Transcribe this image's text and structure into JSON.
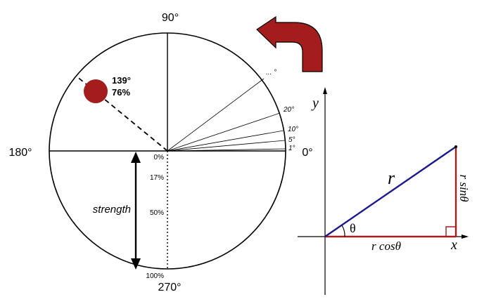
{
  "polar_wheel": {
    "label_top": "90°",
    "label_left": "180°",
    "label_right": "0°",
    "label_bottom": "270°",
    "angle_ticks": [
      "1°",
      "5°",
      "10°",
      "20°",
      "... °"
    ],
    "strength_ticks": [
      "0%",
      "17%",
      "50%",
      "100%"
    ],
    "strength_label": "strength",
    "point_angle": "139°",
    "point_strength": "76%"
  },
  "triangle": {
    "y_axis": "y",
    "x_axis": "x",
    "hypotenuse": "r",
    "angle": "θ",
    "adjacent": "r cosθ",
    "opposite": "r sinθ"
  },
  "colors": {
    "dot": "#a31d1d",
    "arrow": "#a31d1d",
    "hypotenuse": "#1a1a8c",
    "legs": "#a31d1d"
  },
  "icons": {
    "curved_arrow": "curved-arrow-icon"
  }
}
